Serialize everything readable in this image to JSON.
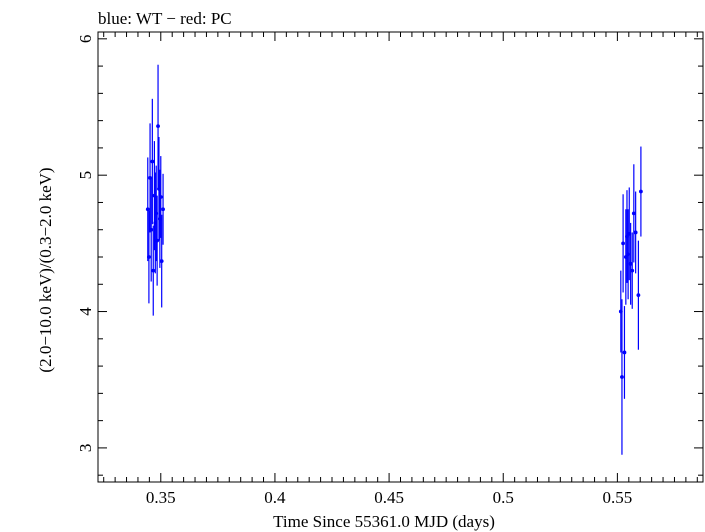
{
  "chart_data": {
    "type": "scatter",
    "title": "blue: WT − red: PC",
    "xlabel": "Time Since 55361.0 MJD (days)",
    "ylabel": "(2.0−10.0 keV)/(0.3−2.0 keV)",
    "xlim": [
      0.3225,
      0.5875
    ],
    "ylim": [
      2.75,
      6.05
    ],
    "xticks": [
      0.35,
      0.4,
      0.45,
      0.5,
      0.55
    ],
    "xtick_labels": [
      "0.35",
      "0.4",
      "0.45",
      "0.5",
      "0.55"
    ],
    "yticks": [
      3,
      4,
      5,
      6
    ],
    "ytick_labels": [
      "3",
      "4",
      "5",
      "6"
    ],
    "grid": false,
    "colors": {
      "wt": "#0000ff",
      "axis": "#000000"
    },
    "series": [
      {
        "name": "WT",
        "color": "#0000ff",
        "points": [
          {
            "x": 0.3443,
            "y": 4.75,
            "err": 0.38
          },
          {
            "x": 0.3448,
            "y": 4.4,
            "err": 0.34
          },
          {
            "x": 0.3453,
            "y": 4.98,
            "err": 0.4
          },
          {
            "x": 0.3458,
            "y": 4.6,
            "err": 0.38
          },
          {
            "x": 0.3463,
            "y": 5.1,
            "err": 0.46
          },
          {
            "x": 0.3467,
            "y": 4.3,
            "err": 0.33
          },
          {
            "x": 0.3472,
            "y": 4.85,
            "err": 0.4
          },
          {
            "x": 0.3476,
            "y": 4.65,
            "err": 0.37
          },
          {
            "x": 0.348,
            "y": 4.72,
            "err": 0.35
          },
          {
            "x": 0.3484,
            "y": 4.52,
            "err": 0.33
          },
          {
            "x": 0.3488,
            "y": 5.36,
            "err": 0.45
          },
          {
            "x": 0.3492,
            "y": 4.9,
            "err": 0.38
          },
          {
            "x": 0.3496,
            "y": 4.68,
            "err": 0.36
          },
          {
            "x": 0.35,
            "y": 4.84,
            "err": 0.3
          },
          {
            "x": 0.3504,
            "y": 4.37,
            "err": 0.34
          },
          {
            "x": 0.351,
            "y": 4.75,
            "err": 0.26
          }
        ]
      },
      {
        "name": "WT",
        "color": "#0000ff",
        "points": [
          {
            "x": 0.5515,
            "y": 4.0,
            "err": 0.3
          },
          {
            "x": 0.552,
            "y": 3.52,
            "err": 0.57
          },
          {
            "x": 0.5525,
            "y": 4.5,
            "err": 0.36
          },
          {
            "x": 0.5531,
            "y": 3.7,
            "err": 0.34
          },
          {
            "x": 0.5537,
            "y": 4.4,
            "err": 0.35
          },
          {
            "x": 0.5542,
            "y": 4.55,
            "err": 0.34
          },
          {
            "x": 0.5547,
            "y": 4.42,
            "err": 0.33
          },
          {
            "x": 0.5552,
            "y": 4.57,
            "err": 0.34
          },
          {
            "x": 0.5558,
            "y": 4.35,
            "err": 0.3
          },
          {
            "x": 0.5565,
            "y": 4.3,
            "err": 0.28
          },
          {
            "x": 0.5572,
            "y": 4.72,
            "err": 0.36
          },
          {
            "x": 0.558,
            "y": 4.58,
            "err": 0.3
          },
          {
            "x": 0.5592,
            "y": 4.12,
            "err": 0.4
          },
          {
            "x": 0.5603,
            "y": 4.88,
            "err": 0.33
          }
        ]
      }
    ]
  }
}
